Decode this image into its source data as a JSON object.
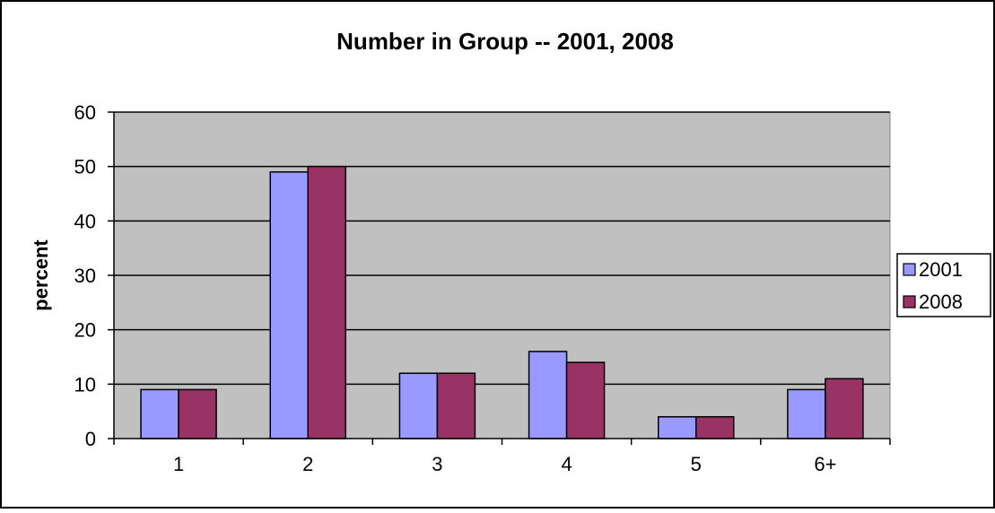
{
  "chart_data": {
    "type": "bar",
    "title": "Number in Group -- 2001, 2008",
    "xlabel": "",
    "ylabel": "percent",
    "categories": [
      "1",
      "2",
      "3",
      "4",
      "5",
      "6+"
    ],
    "series": [
      {
        "name": "2001",
        "values": [
          9,
          49,
          12,
          16,
          4,
          9
        ],
        "color": "#9999ff"
      },
      {
        "name": "2008",
        "values": [
          9,
          50,
          12,
          14,
          4,
          11
        ],
        "color": "#993366"
      }
    ],
    "ylim": [
      0,
      60
    ],
    "yticks": [
      0,
      10,
      20,
      30,
      40,
      50,
      60
    ],
    "grid": true,
    "plot_background": "#c0c0c0",
    "legend": "right"
  }
}
